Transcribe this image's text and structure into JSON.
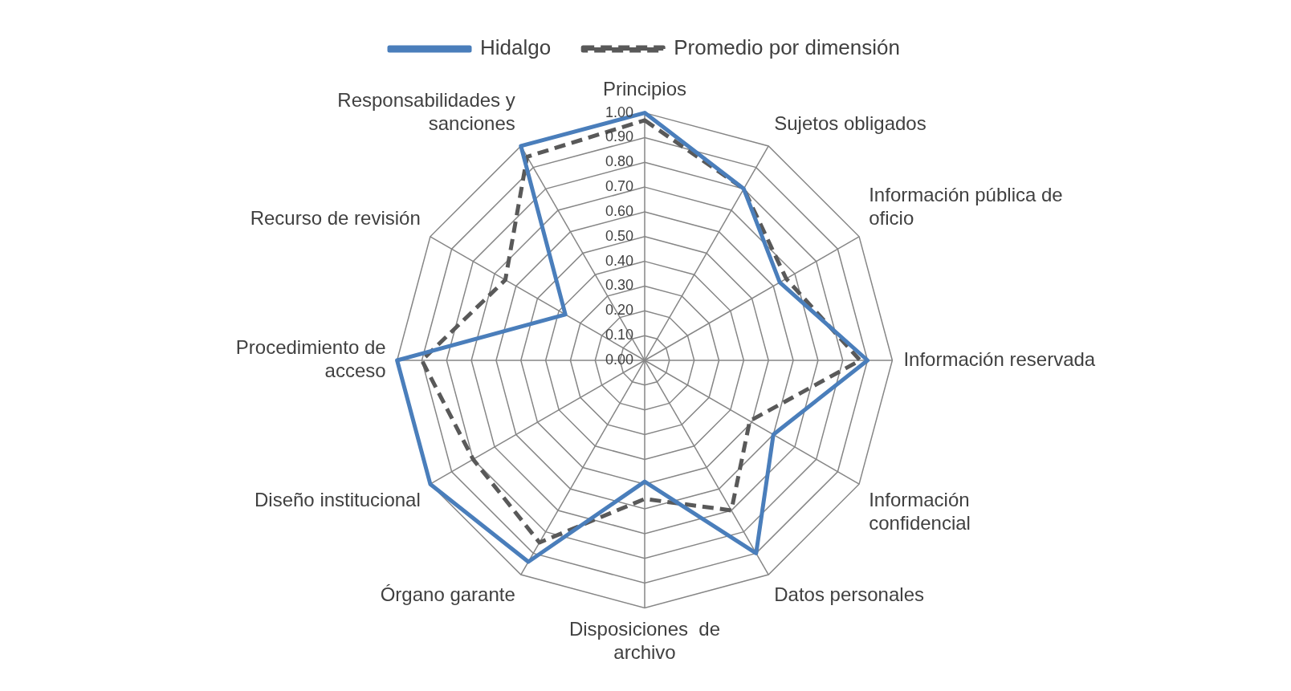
{
  "chart_data": {
    "type": "radar",
    "categories": [
      "Principios",
      "Sujetos obligados",
      "Información pública de\noficio",
      "Información reservada",
      "Información\nconfidencial",
      "Datos personales",
      "Disposiciones  de\narchivo",
      "Órgano garante",
      "Diseño institucional",
      "Procedimiento de\nacceso",
      "Recurso de revisión",
      "Responsabilidades y\nsanciones"
    ],
    "series": [
      {
        "name": "Hidalgo",
        "color": "#4a7ebb",
        "line_style": "solid",
        "values": [
          1.0,
          0.8,
          0.63,
          0.9,
          0.6,
          0.9,
          0.49,
          0.94,
          1.0,
          1.0,
          0.37,
          1.0
        ]
      },
      {
        "name": "Promedio por dimensión",
        "color": "#595959",
        "line_style": "dashed",
        "values": [
          0.97,
          0.8,
          0.66,
          0.87,
          0.49,
          0.7,
          0.56,
          0.85,
          0.8,
          0.9,
          0.65,
          0.95
        ]
      }
    ],
    "ylim": [
      0,
      1
    ],
    "yticks": [
      {
        "value": 0,
        "label": "0.00"
      },
      {
        "value": 0.1,
        "label": "0.10"
      },
      {
        "value": 0.2,
        "label": "0.20"
      },
      {
        "value": 0.3,
        "label": "0.30"
      },
      {
        "value": 0.4,
        "label": "0.40"
      },
      {
        "value": 0.5,
        "label": "0.50"
      },
      {
        "value": 0.6,
        "label": "0.60"
      },
      {
        "value": 0.7,
        "label": "0.70"
      },
      {
        "value": 0.8,
        "label": "0.80"
      },
      {
        "value": 0.9,
        "label": "0.90"
      },
      {
        "value": 1,
        "label": "1.00"
      }
    ],
    "grid": true,
    "legend": "top",
    "marker": "none"
  }
}
